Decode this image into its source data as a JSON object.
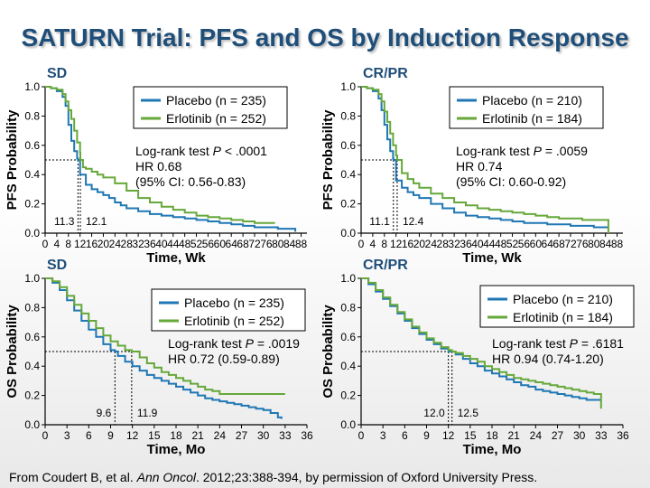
{
  "title": "SATURN Trial: PFS and OS by Induction Response",
  "footer": {
    "prefix": "From Coudert B, et al. ",
    "journal": "Ann Oncol",
    "suffix": ". 2012;23:388-394, by permission of Oxford University Press."
  },
  "colors": {
    "placebo": "#1f77b4",
    "erlotinib": "#66a83a",
    "title": "#1f4e79"
  },
  "chart_data": [
    {
      "type": "line",
      "panel_label": "SD",
      "xlabel": "Time, Wk",
      "ylabel": "PFS Probability",
      "xlim": [
        0,
        90
      ],
      "ylim": [
        0,
        1.0
      ],
      "xticks": [
        0,
        4,
        8,
        12,
        16,
        20,
        24,
        28,
        32,
        36,
        40,
        44,
        48,
        52,
        56,
        60,
        64,
        68,
        72,
        76,
        80,
        84,
        88
      ],
      "yticks": [
        0.0,
        0.2,
        0.4,
        0.6,
        0.8,
        1.0
      ],
      "series": [
        {
          "name": "Placebo (n = 235)",
          "color_key": "placebo",
          "x": [
            0,
            2,
            4,
            6,
            7,
            8,
            9,
            10,
            11,
            11.3,
            12,
            14,
            16,
            18,
            20,
            22,
            24,
            26,
            28,
            32,
            36,
            40,
            44,
            48,
            52,
            56,
            60,
            64,
            68,
            72,
            76,
            80,
            84,
            86
          ],
          "y": [
            1.0,
            0.99,
            0.97,
            0.93,
            0.87,
            0.74,
            0.63,
            0.56,
            0.51,
            0.5,
            0.4,
            0.33,
            0.3,
            0.28,
            0.26,
            0.24,
            0.21,
            0.19,
            0.17,
            0.15,
            0.13,
            0.12,
            0.11,
            0.1,
            0.09,
            0.08,
            0.07,
            0.06,
            0.05,
            0.04,
            0.04,
            0.03,
            0.03,
            0.01
          ]
        },
        {
          "name": "Erlotinib (n = 252)",
          "color_key": "erlotinib",
          "x": [
            0,
            2,
            4,
            6,
            7,
            8,
            9,
            10,
            11,
            12,
            12.1,
            13,
            14,
            16,
            18,
            20,
            24,
            28,
            32,
            36,
            40,
            44,
            48,
            52,
            56,
            60,
            64,
            68,
            72,
            76,
            79
          ],
          "y": [
            1.0,
            0.99,
            0.98,
            0.95,
            0.9,
            0.84,
            0.78,
            0.7,
            0.62,
            0.55,
            0.5,
            0.45,
            0.44,
            0.42,
            0.4,
            0.38,
            0.34,
            0.29,
            0.24,
            0.21,
            0.18,
            0.16,
            0.14,
            0.12,
            0.11,
            0.1,
            0.09,
            0.08,
            0.07,
            0.07,
            0.07
          ]
        }
      ],
      "median_y": 0.5,
      "medians": [
        {
          "x": 11.3,
          "label": "11.3"
        },
        {
          "x": 12.1,
          "label": "12.1"
        }
      ],
      "legend": "top-right",
      "annotation": {
        "test_prefix": "Log-rank test ",
        "p_symbol": "P",
        "p_value": " < .0001",
        "hr": "HR 0.68",
        "ci": "(95% CI: 0.56-0.83)"
      }
    },
    {
      "type": "line",
      "panel_label": "CR/PR",
      "xlabel": "Time, Wk",
      "ylabel": "PFS Probability",
      "xlim": [
        0,
        90
      ],
      "ylim": [
        0,
        1.0
      ],
      "xticks": [
        0,
        4,
        8,
        12,
        16,
        20,
        24,
        28,
        32,
        36,
        40,
        44,
        48,
        52,
        56,
        60,
        64,
        68,
        72,
        76,
        80,
        84,
        88
      ],
      "yticks": [
        0.0,
        0.2,
        0.4,
        0.6,
        0.8,
        1.0
      ],
      "series": [
        {
          "name": "Placebo (n = 210)",
          "color_key": "placebo",
          "x": [
            0,
            2,
            4,
            6,
            7,
            8,
            9,
            10,
            11,
            11.1,
            12,
            14,
            16,
            18,
            20,
            24,
            28,
            32,
            36,
            40,
            44,
            48,
            52,
            56,
            60,
            64,
            68,
            72,
            76,
            80,
            84,
            85
          ],
          "y": [
            1.0,
            0.99,
            0.97,
            0.92,
            0.84,
            0.74,
            0.64,
            0.56,
            0.51,
            0.5,
            0.36,
            0.31,
            0.28,
            0.26,
            0.24,
            0.2,
            0.17,
            0.14,
            0.12,
            0.11,
            0.1,
            0.09,
            0.08,
            0.07,
            0.07,
            0.06,
            0.06,
            0.05,
            0.05,
            0.04,
            0.04,
            0.04
          ]
        },
        {
          "name": "Erlotinib (n = 184)",
          "color_key": "erlotinib",
          "x": [
            0,
            2,
            4,
            6,
            7,
            8,
            9,
            10,
            11,
            12,
            12.4,
            14,
            16,
            18,
            20,
            24,
            28,
            32,
            36,
            40,
            44,
            48,
            52,
            56,
            60,
            64,
            68,
            72,
            76,
            80,
            84,
            85,
            85
          ],
          "y": [
            1.0,
            0.99,
            0.98,
            0.95,
            0.9,
            0.83,
            0.76,
            0.68,
            0.6,
            0.53,
            0.5,
            0.41,
            0.37,
            0.34,
            0.31,
            0.27,
            0.24,
            0.21,
            0.19,
            0.17,
            0.16,
            0.15,
            0.14,
            0.13,
            0.12,
            0.11,
            0.1,
            0.1,
            0.09,
            0.09,
            0.09,
            0.09,
            0.0
          ]
        }
      ],
      "median_y": 0.5,
      "medians": [
        {
          "x": 11.1,
          "label": "11.1"
        },
        {
          "x": 12.4,
          "label": "12.4"
        }
      ],
      "legend": "top-right",
      "annotation": {
        "test_prefix": "Log-rank test ",
        "p_symbol": "P",
        "p_value": " = .0059",
        "hr": "HR 0.74",
        "ci": "(95% CI: 0.60-0.92)"
      }
    },
    {
      "type": "line",
      "panel_label": "SD",
      "xlabel": "Time, Mo",
      "ylabel": "OS Probability",
      "xlim": [
        0,
        36
      ],
      "ylim": [
        0,
        1.0
      ],
      "xticks": [
        0,
        3,
        6,
        9,
        12,
        15,
        18,
        21,
        24,
        27,
        30,
        33,
        36
      ],
      "yticks": [
        0.0,
        0.2,
        0.4,
        0.6,
        0.8,
        1.0
      ],
      "series": [
        {
          "name": "Placebo (n = 235)",
          "color_key": "placebo",
          "x": [
            0,
            1,
            2,
            3,
            4,
            5,
            6,
            7,
            8,
            9,
            9.6,
            10,
            11,
            12,
            13,
            14,
            15,
            16,
            17,
            18,
            19,
            20,
            21,
            22,
            23,
            24,
            25,
            26,
            27,
            28,
            29,
            30,
            31,
            32,
            32.5
          ],
          "y": [
            1.0,
            0.97,
            0.92,
            0.85,
            0.78,
            0.71,
            0.65,
            0.6,
            0.55,
            0.51,
            0.5,
            0.47,
            0.43,
            0.4,
            0.37,
            0.34,
            0.32,
            0.3,
            0.28,
            0.26,
            0.24,
            0.22,
            0.2,
            0.18,
            0.17,
            0.16,
            0.15,
            0.14,
            0.13,
            0.12,
            0.11,
            0.1,
            0.08,
            0.05,
            0.04
          ]
        },
        {
          "name": "Erlotinib (n = 252)",
          "color_key": "erlotinib",
          "x": [
            0,
            1,
            2,
            3,
            4,
            5,
            6,
            7,
            8,
            9,
            10,
            11,
            11.9,
            13,
            14,
            15,
            16,
            17,
            18,
            19,
            20,
            21,
            22,
            23,
            24,
            25,
            26,
            27,
            28,
            29,
            30,
            31,
            32,
            33
          ],
          "y": [
            1.0,
            0.98,
            0.94,
            0.88,
            0.82,
            0.76,
            0.71,
            0.66,
            0.61,
            0.57,
            0.54,
            0.51,
            0.5,
            0.46,
            0.42,
            0.39,
            0.36,
            0.34,
            0.32,
            0.3,
            0.28,
            0.26,
            0.24,
            0.23,
            0.21,
            0.21,
            0.21,
            0.21,
            0.21,
            0.21,
            0.21,
            0.21,
            0.21,
            0.21
          ]
        }
      ],
      "median_y": 0.5,
      "medians": [
        {
          "x": 9.6,
          "label": "9.6"
        },
        {
          "x": 11.9,
          "label": "11.9"
        }
      ],
      "legend": "top-right",
      "annotation": {
        "test_prefix": "Log-rank test ",
        "p_symbol": "P",
        "p_value": " = .0019",
        "hr": "HR 0.72 (0.59-0.89)",
        "ci": ""
      }
    },
    {
      "type": "line",
      "panel_label": "CR/PR",
      "xlabel": "Time, Mo",
      "ylabel": "OS Probability",
      "xlim": [
        0,
        36
      ],
      "ylim": [
        0,
        1.0
      ],
      "xticks": [
        0,
        3,
        6,
        9,
        12,
        15,
        18,
        21,
        24,
        27,
        30,
        33,
        36
      ],
      "yticks": [
        0.0,
        0.2,
        0.4,
        0.6,
        0.8,
        1.0
      ],
      "series": [
        {
          "name": "Placebo (n = 210)",
          "color_key": "placebo",
          "x": [
            0,
            1,
            2,
            3,
            4,
            5,
            6,
            7,
            8,
            9,
            10,
            11,
            12,
            13,
            14,
            15,
            16,
            17,
            18,
            19,
            20,
            21,
            22,
            23,
            24,
            25,
            26,
            27,
            28,
            29,
            30,
            31,
            32,
            33
          ],
          "y": [
            1.0,
            0.96,
            0.91,
            0.86,
            0.81,
            0.76,
            0.71,
            0.66,
            0.62,
            0.58,
            0.55,
            0.52,
            0.5,
            0.48,
            0.45,
            0.42,
            0.4,
            0.37,
            0.35,
            0.33,
            0.31,
            0.29,
            0.27,
            0.26,
            0.24,
            0.23,
            0.22,
            0.21,
            0.2,
            0.19,
            0.18,
            0.17,
            0.17,
            0.17
          ]
        },
        {
          "name": "Erlotinib (n = 184)",
          "color_key": "erlotinib",
          "x": [
            0,
            1,
            2,
            3,
            4,
            5,
            6,
            7,
            8,
            9,
            10,
            11,
            12,
            12.5,
            13,
            14,
            15,
            16,
            17,
            18,
            19,
            20,
            21,
            22,
            23,
            24,
            25,
            26,
            27,
            28,
            29,
            30,
            31,
            32,
            33,
            33
          ],
          "y": [
            1.0,
            0.97,
            0.92,
            0.87,
            0.82,
            0.77,
            0.72,
            0.67,
            0.63,
            0.59,
            0.56,
            0.53,
            0.51,
            0.5,
            0.49,
            0.47,
            0.45,
            0.43,
            0.4,
            0.38,
            0.36,
            0.34,
            0.32,
            0.31,
            0.3,
            0.29,
            0.28,
            0.27,
            0.26,
            0.25,
            0.24,
            0.23,
            0.22,
            0.21,
            0.2,
            0.11
          ]
        }
      ],
      "median_y": 0.5,
      "medians": [
        {
          "x": 12.0,
          "label": "12.0"
        },
        {
          "x": 12.5,
          "label": "12.5"
        }
      ],
      "legend": "top-right",
      "annotation": {
        "test_prefix": "Log-rank test ",
        "p_symbol": "P",
        "p_value": " = .6181",
        "hr": "HR 0.94 (0.74-1.20)",
        "ci": ""
      }
    }
  ]
}
